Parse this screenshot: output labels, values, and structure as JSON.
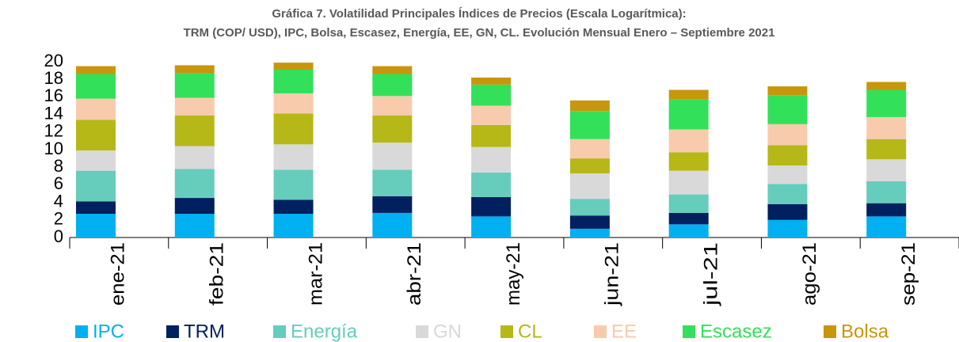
{
  "chart_data": {
    "type": "stacked_bar",
    "title": "Gráfica 7. Volatilidad Principales Índices de Precios (Escala Logarítmica):",
    "subtitle": "TRM (COP/ USD), IPC, Bolsa, Escasez, Energía, EE, GN, CL. Evolución Mensual Enero – Septiembre 2021",
    "categories": [
      "ene-21",
      "feb-21",
      "mar-21",
      "abr-21",
      "may-21",
      "jun-21",
      "jul-21",
      "ago-21",
      "sep-21"
    ],
    "series": [
      {
        "name": "IPC",
        "color": "#00b0f0",
        "values": [
          2.7,
          2.7,
          2.7,
          2.8,
          2.4,
          1.0,
          1.5,
          2.0,
          2.4
        ]
      },
      {
        "name": "TRM",
        "color": "#002060",
        "values": [
          1.4,
          1.8,
          1.6,
          1.9,
          2.2,
          1.5,
          1.3,
          1.8,
          1.5
        ]
      },
      {
        "name": "Energía",
        "color": "#66ccbb",
        "values": [
          3.5,
          3.3,
          3.4,
          3.0,
          2.8,
          1.9,
          2.1,
          2.3,
          2.5
        ]
      },
      {
        "name": "GN",
        "color": "#d9d9d9",
        "values": [
          2.3,
          2.6,
          2.9,
          3.1,
          2.9,
          2.9,
          2.7,
          2.1,
          2.5
        ]
      },
      {
        "name": "CL",
        "color": "#b5b817",
        "values": [
          3.5,
          3.5,
          3.5,
          3.1,
          2.5,
          1.7,
          2.1,
          2.3,
          2.3
        ]
      },
      {
        "name": "EE",
        "color": "#f8cbad",
        "values": [
          2.4,
          2.0,
          2.3,
          2.2,
          2.2,
          2.2,
          2.6,
          2.4,
          2.5
        ]
      },
      {
        "name": "Escasez",
        "color": "#33e05a",
        "values": [
          2.8,
          2.8,
          2.7,
          2.5,
          2.4,
          3.2,
          3.4,
          3.3,
          3.1
        ]
      },
      {
        "name": "Bolsa",
        "color": "#c8960c",
        "values": [
          0.9,
          0.9,
          0.8,
          0.9,
          0.8,
          1.2,
          1.1,
          1.0,
          0.9
        ]
      }
    ],
    "ylim": [
      0,
      20
    ],
    "yticks": [
      0,
      2,
      4,
      6,
      8,
      10,
      12,
      14,
      16,
      18,
      20
    ],
    "grid": false,
    "legend": "bottom"
  }
}
